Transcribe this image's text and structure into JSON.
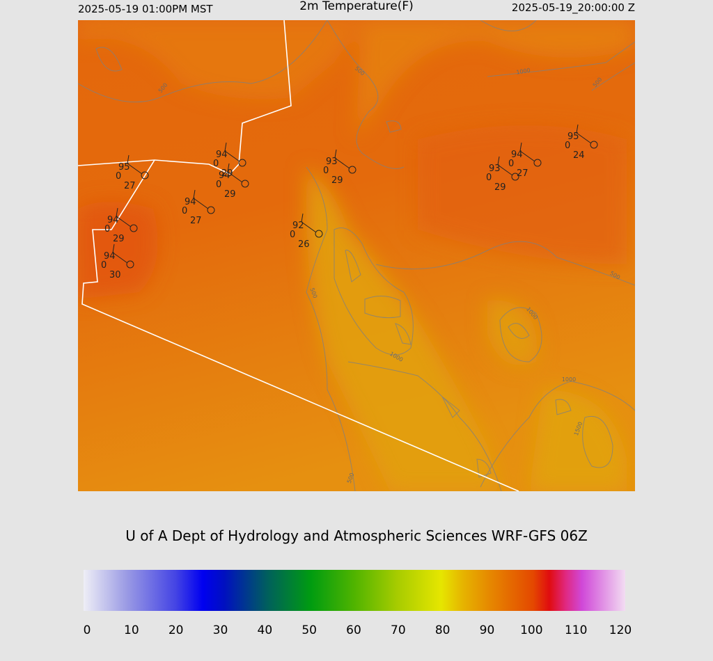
{
  "header": {
    "left": "2025-05-19 01:00PM MST",
    "title": "2m Temperature(F)",
    "right": "2025-05-19_20:00:00 Z"
  },
  "stations": [
    {
      "temperature": 95,
      "middle": 0,
      "dewpoint": 27
    },
    {
      "temperature": 94,
      "middle": 0,
      "dewpoint": 29
    },
    {
      "temperature": 94,
      "middle": 0,
      "dewpoint": 29
    },
    {
      "temperature": 94,
      "middle": 0,
      "dewpoint": 27
    },
    {
      "temperature": 94,
      "middle": 0,
      "dewpoint": 29
    },
    {
      "temperature": 94,
      "middle": 0,
      "dewpoint": 30
    },
    {
      "temperature": 92,
      "middle": 0,
      "dewpoint": 26
    },
    {
      "temperature": 93,
      "middle": 0,
      "dewpoint": 29
    },
    {
      "temperature": 94,
      "middle": 0,
      "dewpoint": 27
    },
    {
      "temperature": 93,
      "middle": 0,
      "dewpoint": 29
    },
    {
      "temperature": 95,
      "middle": 0,
      "dewpoint": 24
    }
  ],
  "contour_labels": [
    500,
    1000,
    500,
    500,
    500,
    1000,
    1000,
    1000,
    1500,
    500,
    500
  ],
  "credit": "U of A Dept of Hydrology and Atmospheric Sciences WRF-GFS 06Z",
  "colorbar": {
    "range": [
      0,
      120
    ],
    "ticks": [
      0,
      10,
      20,
      30,
      40,
      50,
      60,
      70,
      80,
      90,
      100,
      110,
      120
    ]
  }
}
